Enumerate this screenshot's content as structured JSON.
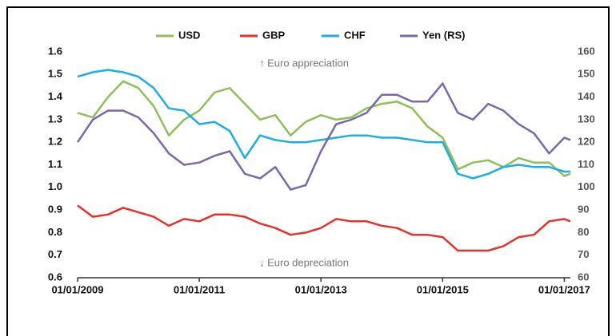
{
  "chart_data": {
    "type": "line",
    "annotations": [
      "↑ Euro appreciation",
      "↓ Euro depreciation"
    ],
    "x": [
      2009,
      2009.25,
      2009.5,
      2009.75,
      2010,
      2010.25,
      2010.5,
      2010.75,
      2011,
      2011.25,
      2011.5,
      2011.75,
      2012,
      2012.25,
      2012.5,
      2012.75,
      2013,
      2013.25,
      2013.5,
      2013.75,
      2014,
      2014.25,
      2014.5,
      2014.75,
      2015,
      2015.25,
      2015.5,
      2015.75,
      2016,
      2016.25,
      2016.5,
      2016.75,
      2017,
      2017.1
    ],
    "series": [
      {
        "name": "USD",
        "color": "#8dc05a",
        "values": [
          1.33,
          1.31,
          1.4,
          1.47,
          1.44,
          1.36,
          1.23,
          1.3,
          1.34,
          1.42,
          1.44,
          1.37,
          1.3,
          1.32,
          1.23,
          1.29,
          1.32,
          1.3,
          1.31,
          1.35,
          1.37,
          1.38,
          1.35,
          1.27,
          1.22,
          1.08,
          1.11,
          1.12,
          1.09,
          1.13,
          1.11,
          1.11,
          1.05,
          1.06
        ]
      },
      {
        "name": "GBP",
        "color": "#e8302a",
        "values": [
          0.92,
          0.87,
          0.88,
          0.91,
          0.89,
          0.87,
          0.83,
          0.86,
          0.85,
          0.88,
          0.88,
          0.87,
          0.84,
          0.82,
          0.79,
          0.8,
          0.82,
          0.86,
          0.85,
          0.85,
          0.83,
          0.82,
          0.79,
          0.79,
          0.78,
          0.72,
          0.72,
          0.72,
          0.74,
          0.78,
          0.79,
          0.85,
          0.86,
          0.85
        ]
      },
      {
        "name": "CHF",
        "color": "#1eaee6",
        "values": [
          1.49,
          1.51,
          1.52,
          1.51,
          1.49,
          1.44,
          1.35,
          1.34,
          1.28,
          1.29,
          1.25,
          1.13,
          1.23,
          1.21,
          1.2,
          1.2,
          1.21,
          1.22,
          1.23,
          1.23,
          1.22,
          1.22,
          1.21,
          1.2,
          1.2,
          1.06,
          1.04,
          1.06,
          1.09,
          1.1,
          1.09,
          1.09,
          1.07,
          1.07
        ]
      },
      {
        "name": "Yen (RS)",
        "color": "#7b68a8",
        "axis": "y2",
        "values": [
          120,
          130,
          134,
          134,
          131,
          124,
          115,
          110,
          111,
          114,
          116,
          106,
          104,
          109,
          99,
          101,
          116,
          128,
          130,
          133,
          141,
          141,
          138,
          138,
          146,
          133,
          130,
          137,
          134,
          128,
          124,
          115,
          122,
          121
        ]
      }
    ],
    "xlim": [
      2009,
      2017.1
    ],
    "xticks": [
      {
        "value": 2009,
        "label": "01/01/2009"
      },
      {
        "value": 2011,
        "label": "01/01/2011"
      },
      {
        "value": 2013,
        "label": "01/01/2013"
      },
      {
        "value": 2015,
        "label": "01/01/2015"
      },
      {
        "value": 2017,
        "label": "01/01/2017"
      }
    ],
    "ylim": [
      0.6,
      1.6
    ],
    "yticks": [
      0.6,
      0.7,
      0.8,
      0.9,
      {
        "value": 1,
        "label": "1.0"
      },
      1.1,
      1.2,
      1.3,
      1.4,
      1.5,
      1.6
    ],
    "y2lim": [
      60,
      160
    ],
    "y2ticks": [
      60,
      70,
      80,
      90,
      100,
      110,
      120,
      130,
      140,
      150,
      160
    ],
    "legend": "top"
  }
}
